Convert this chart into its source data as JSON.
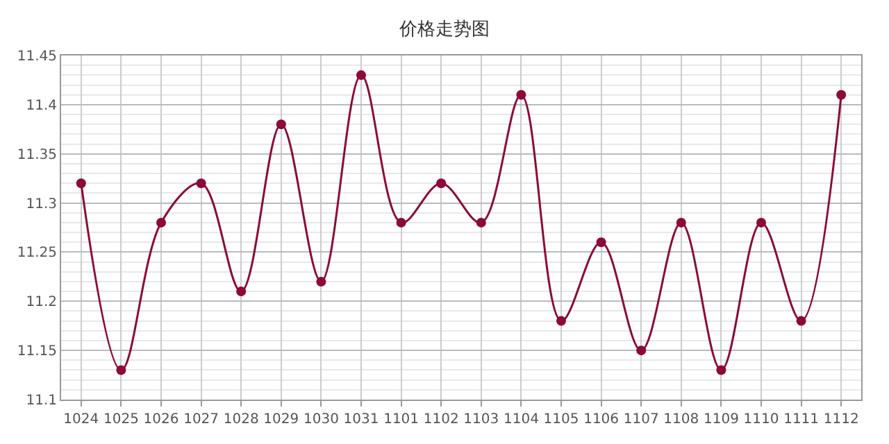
{
  "chart_data": {
    "type": "line",
    "title": "价格走势图",
    "categories": [
      "1024",
      "1025",
      "1026",
      "1027",
      "1028",
      "1029",
      "1030",
      "1031",
      "1101",
      "1102",
      "1103",
      "1104",
      "1105",
      "1106",
      "1107",
      "1108",
      "1109",
      "1110",
      "1111",
      "1112"
    ],
    "series": [
      {
        "color": "#8b0a3a",
        "values": [
          11.32,
          11.13,
          11.28,
          11.32,
          11.21,
          11.38,
          11.22,
          11.43,
          11.28,
          11.32,
          11.28,
          11.41,
          11.18,
          11.26,
          11.15,
          11.28,
          11.13,
          11.28,
          11.18,
          11.41
        ]
      }
    ],
    "ylim": [
      11.1,
      11.45
    ],
    "yticks": [
      11.1,
      11.15,
      11.2,
      11.25,
      11.3,
      11.35,
      11.4,
      11.45
    ],
    "grid": true,
    "marker": "circle",
    "line_style": "solid"
  }
}
